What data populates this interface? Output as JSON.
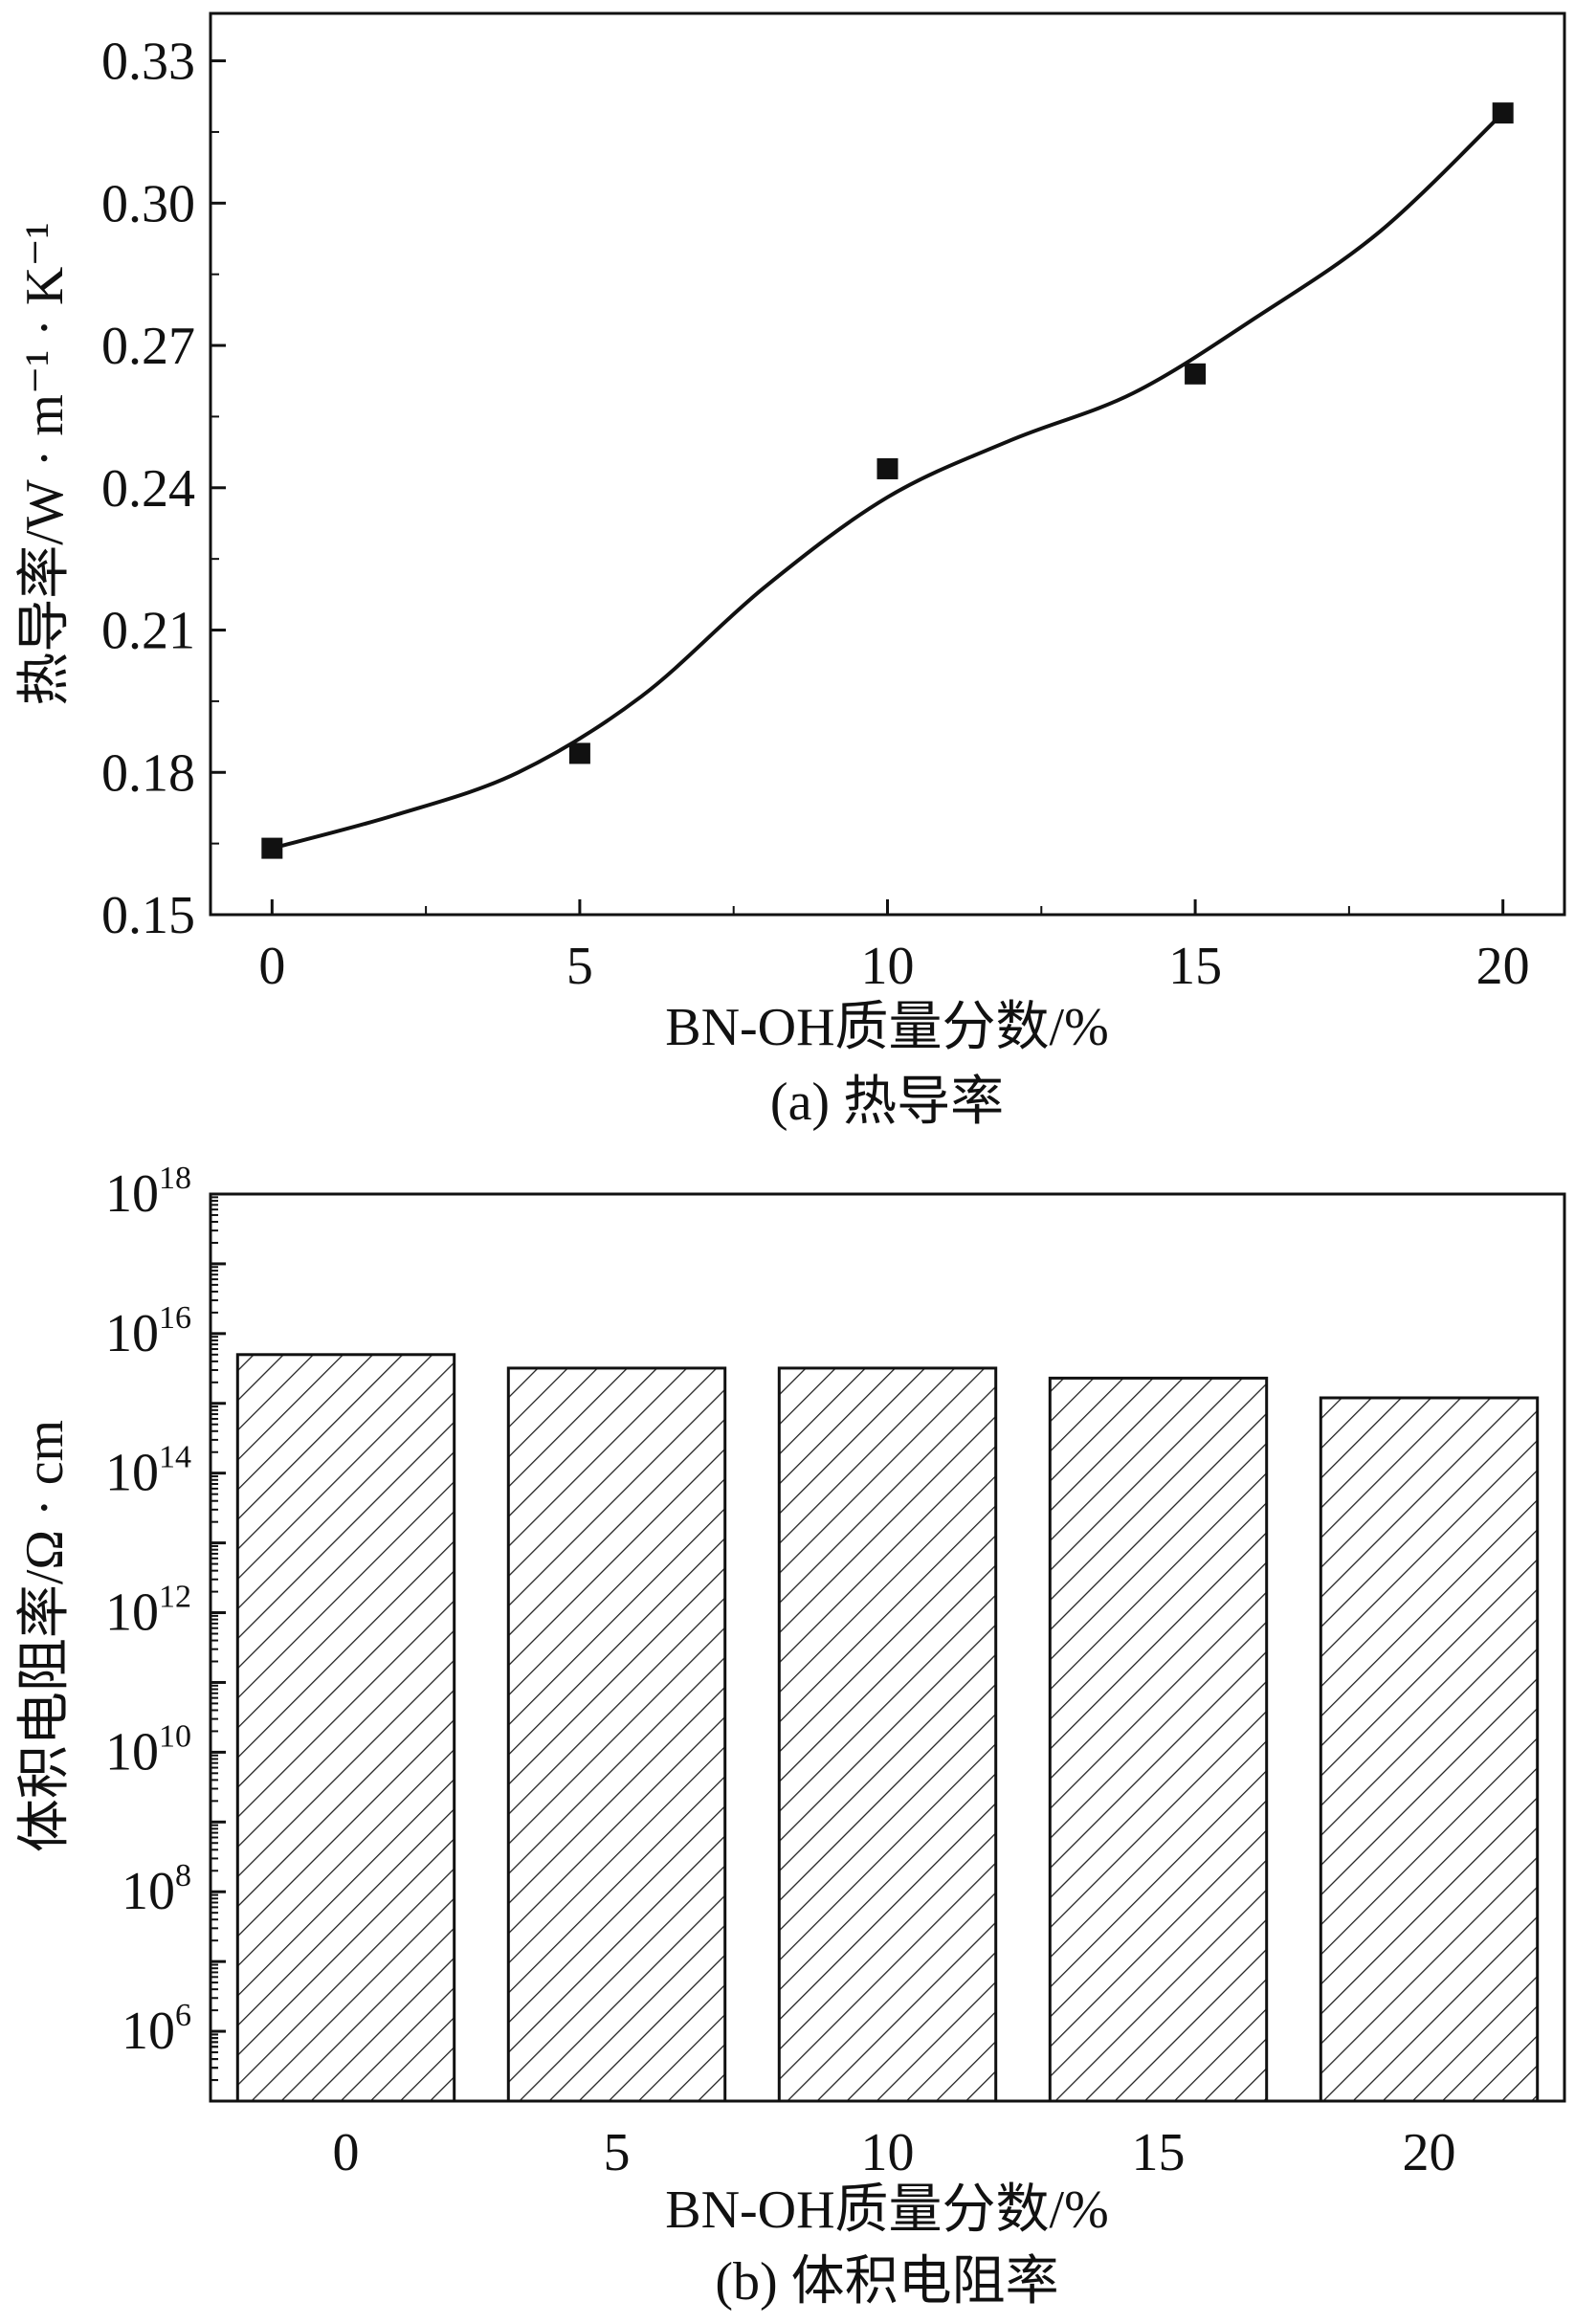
{
  "chart_data": [
    {
      "type": "scatter",
      "caption": "(a) 热导率",
      "xlabel": "BN-OH质量分数/%",
      "ylabel": "热导率/W · m⁻¹ · K⁻¹",
      "x_ticks": [
        "0",
        "5",
        "10",
        "15",
        "20"
      ],
      "y_ticks": [
        "0.15",
        "0.18",
        "0.21",
        "0.24",
        "0.27",
        "0.30",
        "0.33"
      ],
      "xlim": [
        -1,
        21
      ],
      "ylim": [
        0.15,
        0.34
      ],
      "grid": false,
      "series": [
        {
          "marker": "square",
          "color": "#111111",
          "x": [
            0,
            5,
            10,
            15,
            20
          ],
          "y": [
            0.164,
            0.184,
            0.244,
            0.264,
            0.319
          ]
        }
      ],
      "fit_curve": {
        "color": "#111111",
        "x": [
          0,
          2,
          4,
          6,
          8,
          10,
          12,
          14,
          16,
          18,
          20
        ],
        "y": [
          0.164,
          0.171,
          0.18,
          0.196,
          0.219,
          0.238,
          0.25,
          0.26,
          0.276,
          0.294,
          0.319
        ]
      }
    },
    {
      "type": "bar",
      "caption": "(b) 体积电阻率",
      "xlabel": "BN-OH质量分数/%",
      "ylabel": "体积电阻率/Ω · cm",
      "categories": [
        "0",
        "5",
        "10",
        "15",
        "20"
      ],
      "values": [
        5000000000000000.0,
        3200000000000000.0,
        3200000000000000.0,
        2300000000000000.0,
        1200000000000000.0
      ],
      "y_scale": "log",
      "y_ticks": [
        {
          "base": "10",
          "exp": "6",
          "value": 1000000.0
        },
        {
          "base": "10",
          "exp": "8",
          "value": 100000000.0
        },
        {
          "base": "10",
          "exp": "10",
          "value": 10000000000.0
        },
        {
          "base": "10",
          "exp": "12",
          "value": 1000000000000.0
        },
        {
          "base": "10",
          "exp": "14",
          "value": 100000000000000.0
        },
        {
          "base": "10",
          "exp": "16",
          "value": 1e+16
        },
        {
          "base": "10",
          "exp": "18",
          "value": 1e+18
        }
      ],
      "ylim": [
        100000.0,
        1e+18
      ],
      "fill_pattern": "diagonal-hatch",
      "grid": false
    }
  ]
}
